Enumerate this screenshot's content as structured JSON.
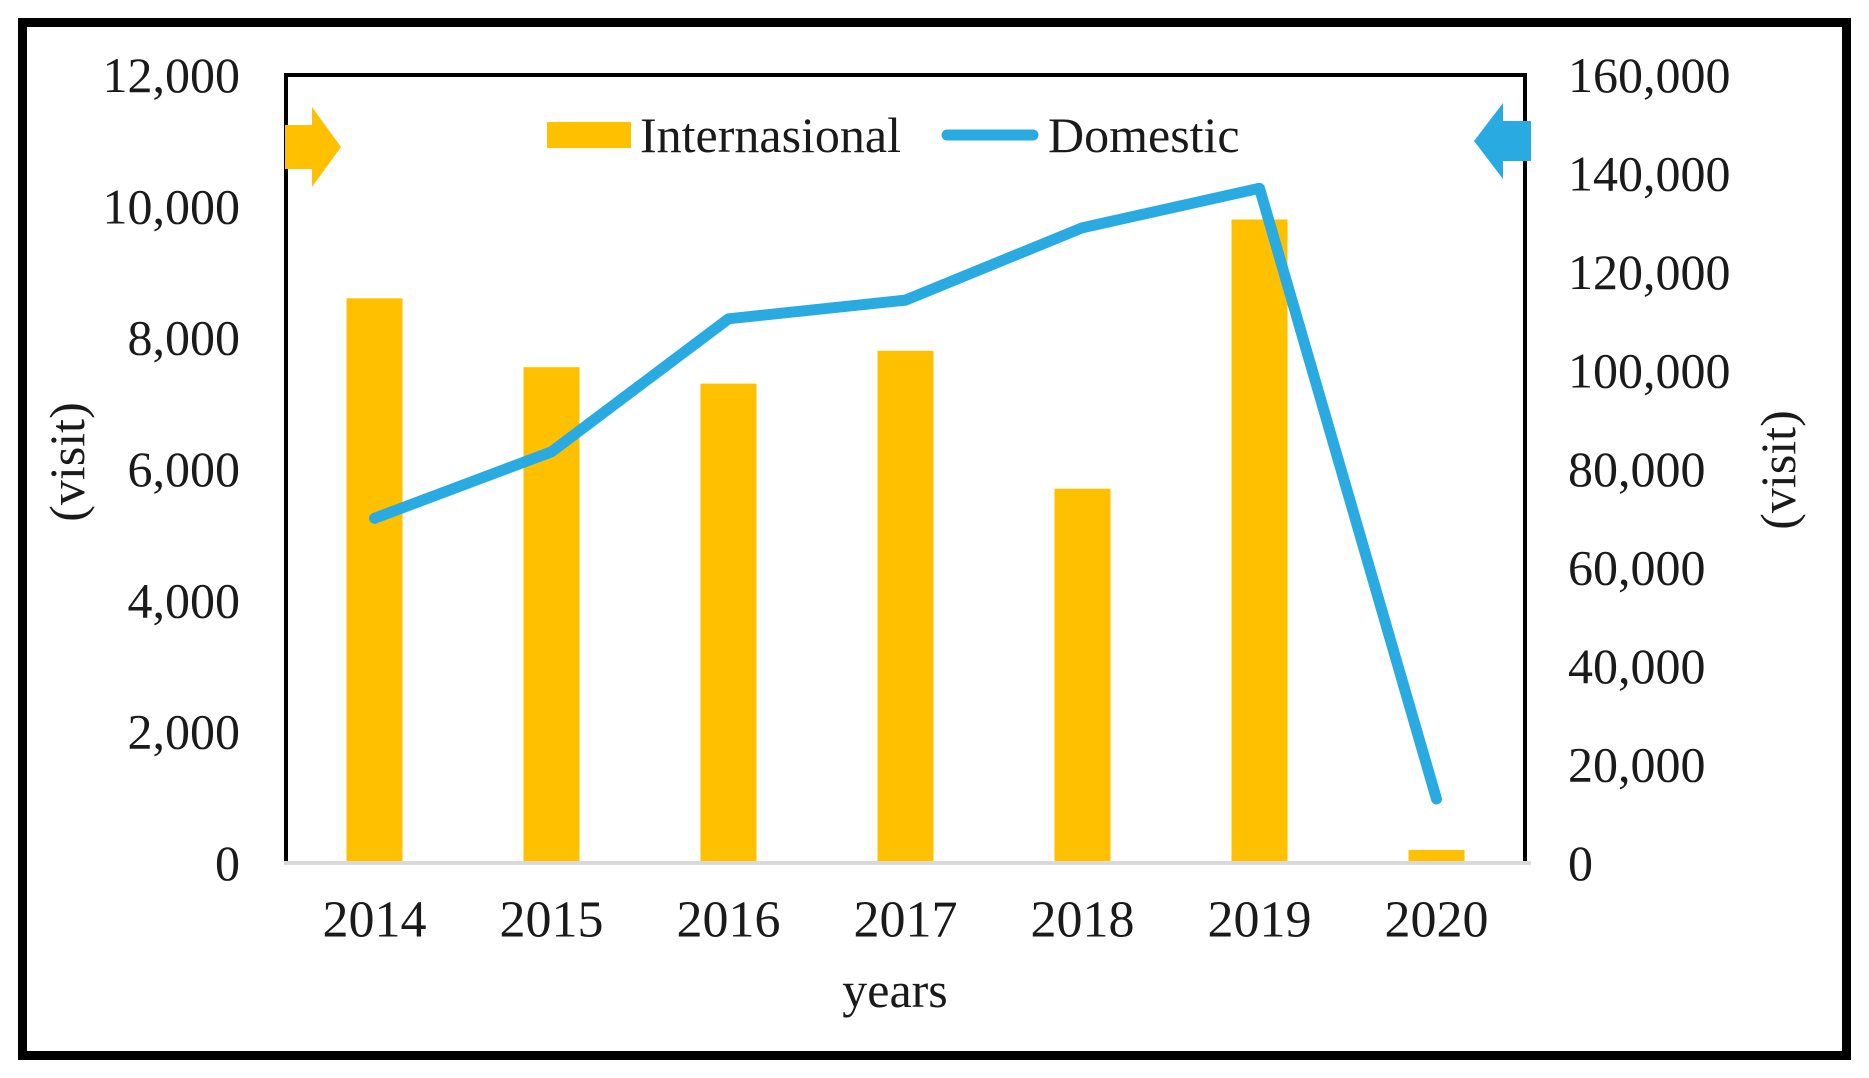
{
  "chart_data": {
    "type": "combo",
    "categories": [
      "2014",
      "2015",
      "2016",
      "2017",
      "2018",
      "2019",
      "2020"
    ],
    "series": [
      {
        "name": "Internasional",
        "type": "bar",
        "axis": "left",
        "color": "#FFC000",
        "values": [
          8600,
          7550,
          7300,
          7800,
          5700,
          9800,
          200
        ]
      },
      {
        "name": "Domestic",
        "type": "line",
        "axis": "right",
        "color": "#29ABE2",
        "values": [
          70000,
          83500,
          110500,
          114300,
          129000,
          137000,
          13000
        ]
      }
    ],
    "left_axis": {
      "title": "(visit)",
      "min": 0,
      "max": 12000,
      "tick_step": 2000,
      "tick_labels": [
        "0",
        "2,000",
        "4,000",
        "6,000",
        "8,000",
        "10,000",
        "12,000"
      ]
    },
    "right_axis": {
      "title": "(visit)",
      "min": 0,
      "max": 160000,
      "tick_step": 20000,
      "tick_labels": [
        "0",
        "20,000",
        "40,000",
        "60,000",
        "80,000",
        "100,000",
        "120,000",
        "140,000",
        "160,000"
      ]
    },
    "x_axis": {
      "title": "years"
    },
    "legend": {
      "position": "top-center",
      "entries": [
        "Internasional",
        "Domestic"
      ]
    },
    "grid": false,
    "annotations": {
      "left_arrow": {
        "shape": "block-arrow",
        "direction": "right",
        "color": "#FFC000"
      },
      "right_arrow": {
        "shape": "block-arrow",
        "direction": "left",
        "color": "#29ABE2"
      }
    }
  },
  "colors": {
    "bar": "#FFC000",
    "line": "#29ABE2",
    "text": "#1a1a1a",
    "plot_border": "#000000",
    "x_axis_line": "#d9d9d9",
    "figure_border": "#000000",
    "background": "#ffffff"
  }
}
